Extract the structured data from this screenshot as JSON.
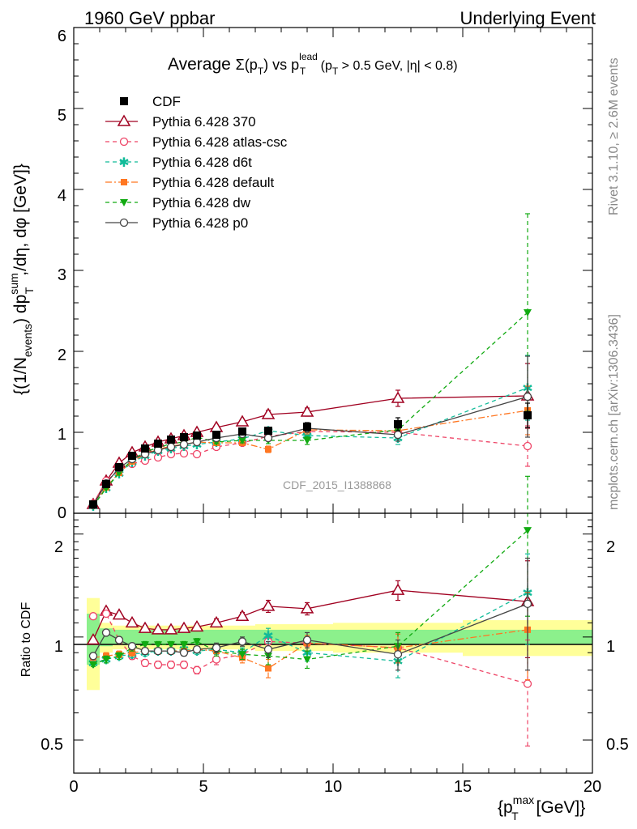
{
  "header": {
    "left": "1960 GeV ppbar",
    "right": "Underlying Event"
  },
  "side_labels": {
    "rivet": "Rivet 3.1.10, ≥ 2.6M events",
    "mcplots": "mcplots.cern.ch [arXiv:1306.3436]"
  },
  "watermark": "CDF_2015_I1388868",
  "chart_data": [
    {
      "type": "line",
      "panel": "main",
      "title_parts": {
        "prefix": "Average ",
        "sigma": "Σ(p",
        "sub_T": "T",
        "mid": ") vs p",
        "sup_lead": "lead",
        "sub_T2": "T",
        "suffix1": " (p",
        "sub_T3": "T",
        "suffix2": " > 0.5 GeV, |η| < 0.8)"
      },
      "ylabel": "{(1/N_events) dp_T^sum/dη, dφ [GeV]}",
      "ylabel_parts": {
        "a": "{(1/N",
        "sub_events": "events",
        "b": ") dp",
        "sup_sum": "sum",
        "sub_T": "T",
        "c": ",/dη, dφ [GeV]}"
      },
      "xlim": [
        0,
        20
      ],
      "ylim": [
        0,
        6
      ],
      "x_ticks": [
        "0",
        "5",
        "10",
        "15",
        "20"
      ],
      "y_ticks": [
        "0",
        "1",
        "2",
        "3",
        "4",
        "5",
        "6"
      ],
      "legend_position": "top-left",
      "x": [
        0.75,
        1.25,
        1.75,
        2.25,
        2.75,
        3.25,
        3.75,
        4.25,
        4.75,
        5.5,
        6.5,
        7.5,
        9.0,
        12.5,
        17.5
      ],
      "series": [
        {
          "name": "CDF",
          "color": "#000000",
          "marker": "square",
          "line": "none",
          "values": [
            0.11,
            0.36,
            0.57,
            0.71,
            0.8,
            0.86,
            0.91,
            0.94,
            0.96,
            0.97,
            1.01,
            1.02,
            1.07,
            1.1,
            1.21
          ],
          "err": [
            0.01,
            0.02,
            0.02,
            0.03,
            0.03,
            0.03,
            0.03,
            0.03,
            0.03,
            0.03,
            0.04,
            0.04,
            0.05,
            0.08,
            0.15
          ]
        },
        {
          "name": "Pythia 6.428 370",
          "color": "#a00020",
          "marker": "triangle-open",
          "line": "solid",
          "values": [
            0.11,
            0.4,
            0.62,
            0.75,
            0.82,
            0.88,
            0.92,
            0.96,
            1.0,
            1.06,
            1.13,
            1.22,
            1.25,
            1.42,
            1.45
          ],
          "err": [
            0.0,
            0.01,
            0.01,
            0.01,
            0.01,
            0.02,
            0.02,
            0.02,
            0.02,
            0.02,
            0.03,
            0.05,
            0.05,
            0.1,
            0.4
          ]
        },
        {
          "name": "Pythia 6.428 atlas-csc",
          "color": "#ee4466",
          "marker": "circle-open",
          "line": "dashed",
          "values": [
            0.12,
            0.4,
            0.53,
            0.61,
            0.65,
            0.69,
            0.73,
            0.74,
            0.73,
            0.82,
            0.87,
            0.95,
            1.01,
            1.0,
            0.83
          ],
          "err": [
            0.0,
            0.01,
            0.01,
            0.01,
            0.01,
            0.01,
            0.02,
            0.02,
            0.02,
            0.02,
            0.03,
            0.04,
            0.05,
            0.08,
            0.25
          ]
        },
        {
          "name": "Pythia 6.428 d6t",
          "color": "#11bb99",
          "marker": "star",
          "line": "dashed",
          "values": [
            0.09,
            0.31,
            0.49,
            0.63,
            0.71,
            0.77,
            0.8,
            0.83,
            0.85,
            0.88,
            0.92,
            1.02,
            0.96,
            0.93,
            1.55
          ],
          "err": [
            0.0,
            0.01,
            0.01,
            0.01,
            0.01,
            0.02,
            0.02,
            0.02,
            0.02,
            0.02,
            0.03,
            0.04,
            0.05,
            0.08,
            0.4
          ]
        },
        {
          "name": "Pythia 6.428 default",
          "color": "#ff7722",
          "marker": "square-small",
          "line": "dashdot",
          "values": [
            0.1,
            0.32,
            0.5,
            0.64,
            0.73,
            0.79,
            0.83,
            0.85,
            0.88,
            0.87,
            0.87,
            0.79,
            1.03,
            1.02,
            1.27
          ],
          "err": [
            0.0,
            0.01,
            0.01,
            0.01,
            0.01,
            0.02,
            0.02,
            0.02,
            0.02,
            0.02,
            0.03,
            0.04,
            0.05,
            0.08,
            0.3
          ]
        },
        {
          "name": "Pythia 6.428 dw",
          "color": "#11aa11",
          "marker": "triangle-down",
          "line": "dashed",
          "values": [
            0.09,
            0.31,
            0.5,
            0.66,
            0.76,
            0.81,
            0.86,
            0.88,
            0.94,
            0.88,
            0.9,
            0.9,
            0.9,
            1.03,
            2.48
          ],
          "err": [
            0.0,
            0.01,
            0.01,
            0.01,
            0.01,
            0.02,
            0.02,
            0.02,
            0.02,
            0.02,
            0.03,
            0.04,
            0.05,
            0.08,
            1.22
          ]
        },
        {
          "name": "Pythia 6.428 p0",
          "color": "#444444",
          "marker": "circle-open",
          "line": "solid",
          "values": [
            0.1,
            0.37,
            0.56,
            0.67,
            0.73,
            0.78,
            0.82,
            0.85,
            0.88,
            0.93,
            0.98,
            0.93,
            1.05,
            0.97,
            1.44
          ],
          "err": [
            0.0,
            0.01,
            0.01,
            0.01,
            0.01,
            0.02,
            0.02,
            0.02,
            0.02,
            0.02,
            0.03,
            0.04,
            0.05,
            0.08,
            0.5
          ]
        }
      ]
    },
    {
      "type": "line",
      "panel": "ratio",
      "ylabel": "Ratio to CDF",
      "xlabel_parts": {
        "a": "{p",
        "sup_max": "max",
        "sub_T": "T",
        "b": " [GeV]}"
      },
      "xlim": [
        0,
        20
      ],
      "ylim": [
        0.4,
        2.3
      ],
      "yscale": "log",
      "y_ticks": [
        "0.5",
        "1",
        "2"
      ],
      "x_ticks": [
        "0",
        "5",
        "10",
        "15",
        "20"
      ],
      "band_bins": [
        [
          0.5,
          1.0
        ],
        [
          1.0,
          1.5
        ],
        [
          1.5,
          2.0
        ],
        [
          2.0,
          2.5
        ],
        [
          2.5,
          3.0
        ],
        [
          3.0,
          3.5
        ],
        [
          3.5,
          4.0
        ],
        [
          4.0,
          4.5
        ],
        [
          4.5,
          5.0
        ],
        [
          5.0,
          6.0
        ],
        [
          6.0,
          7.0
        ],
        [
          7.0,
          8.0
        ],
        [
          8.0,
          10.0
        ],
        [
          10.0,
          15.0
        ],
        [
          15.0,
          20.0
        ]
      ],
      "band_stat": [
        0.17,
        0.06,
        0.05,
        0.05,
        0.05,
        0.05,
        0.05,
        0.05,
        0.05,
        0.05,
        0.05,
        0.05,
        0.05,
        0.05,
        0.05
      ],
      "band_total": [
        0.3,
        0.1,
        0.08,
        0.08,
        0.08,
        0.08,
        0.08,
        0.08,
        0.08,
        0.08,
        0.08,
        0.09,
        0.09,
        0.1,
        0.12
      ],
      "band_colors": {
        "stat": "#8cf08c",
        "total": "#ffff99"
      },
      "series": [
        {
          "name": "Pythia 6.428 370",
          "values": [
            0.98,
            1.19,
            1.16,
            1.1,
            1.06,
            1.05,
            1.05,
            1.06,
            1.07,
            1.1,
            1.15,
            1.23,
            1.21,
            1.37,
            1.27
          ],
          "err": [
            0.01,
            0.02,
            0.02,
            0.02,
            0.02,
            0.02,
            0.02,
            0.02,
            0.02,
            0.03,
            0.03,
            0.05,
            0.05,
            0.09,
            0.4
          ]
        },
        {
          "name": "Pythia 6.428 atlas-csc",
          "values": [
            1.15,
            1.17,
            0.98,
            0.88,
            0.84,
            0.83,
            0.83,
            0.83,
            0.8,
            0.86,
            0.89,
            0.97,
            0.96,
            0.93,
            0.73
          ],
          "err": [
            0.01,
            0.02,
            0.02,
            0.02,
            0.02,
            0.02,
            0.02,
            0.02,
            0.02,
            0.03,
            0.03,
            0.05,
            0.05,
            0.09,
            0.25
          ]
        },
        {
          "name": "Pythia 6.428 d6t",
          "values": [
            0.84,
            0.86,
            0.88,
            0.89,
            0.9,
            0.91,
            0.91,
            0.92,
            0.91,
            0.92,
            0.9,
            1.01,
            0.9,
            0.85,
            1.35
          ],
          "err": [
            0.01,
            0.02,
            0.02,
            0.02,
            0.02,
            0.02,
            0.02,
            0.02,
            0.02,
            0.03,
            0.03,
            0.05,
            0.05,
            0.09,
            0.4
          ]
        },
        {
          "name": "Pythia 6.428 default",
          "values": [
            0.87,
            0.88,
            0.89,
            0.9,
            0.91,
            0.91,
            0.91,
            0.91,
            0.92,
            0.91,
            0.87,
            0.81,
            0.96,
            0.93,
            1.05
          ],
          "err": [
            0.01,
            0.02,
            0.02,
            0.02,
            0.02,
            0.02,
            0.02,
            0.02,
            0.02,
            0.03,
            0.03,
            0.05,
            0.05,
            0.09,
            0.3
          ]
        },
        {
          "name": "Pythia 6.428 dw",
          "values": [
            0.83,
            0.86,
            0.88,
            0.93,
            0.95,
            0.95,
            0.95,
            0.95,
            0.97,
            0.91,
            0.89,
            0.88,
            0.86,
            0.94,
            2.05
          ],
          "err": [
            0.01,
            0.02,
            0.02,
            0.02,
            0.02,
            0.02,
            0.02,
            0.02,
            0.02,
            0.03,
            0.03,
            0.05,
            0.05,
            0.09,
            0.9
          ]
        },
        {
          "name": "Pythia 6.428 p0",
          "values": [
            0.88,
            1.03,
            0.98,
            0.94,
            0.91,
            0.91,
            0.91,
            0.9,
            0.92,
            0.93,
            0.97,
            0.92,
            0.98,
            0.89,
            1.25
          ],
          "err": [
            0.01,
            0.02,
            0.02,
            0.02,
            0.02,
            0.02,
            0.02,
            0.02,
            0.02,
            0.03,
            0.03,
            0.05,
            0.05,
            0.09,
            0.45
          ]
        }
      ]
    }
  ]
}
